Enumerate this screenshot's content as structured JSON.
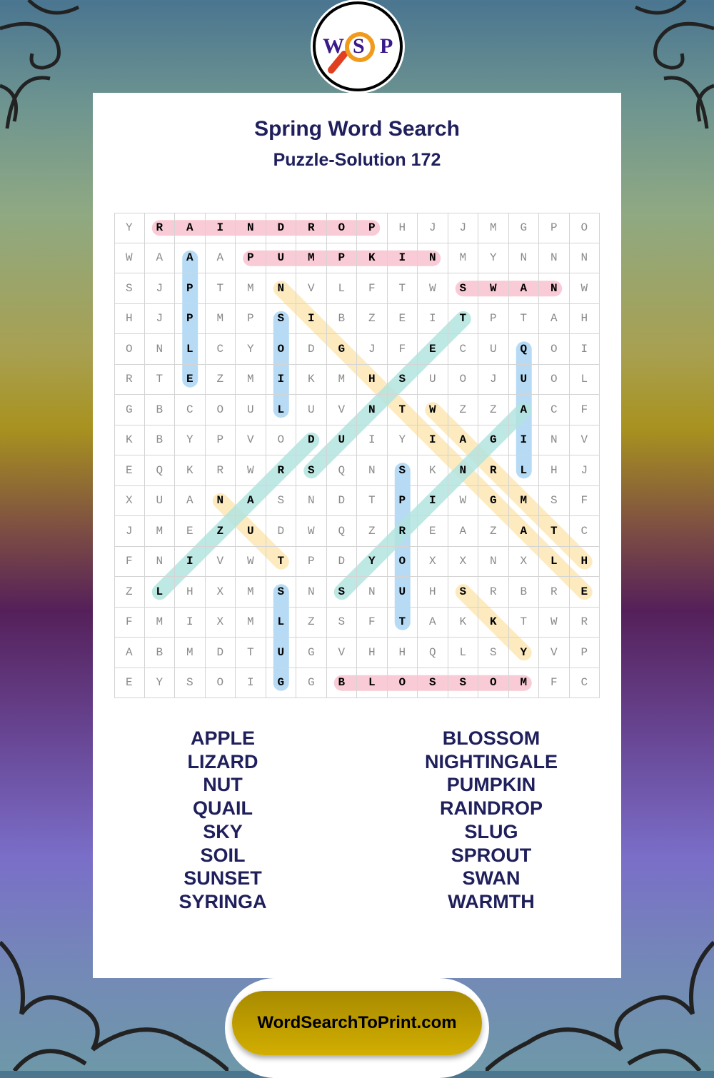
{
  "logo": {
    "letters": [
      "W",
      "S",
      "P"
    ],
    "icon": "magnifier-icon"
  },
  "header": {
    "title": "Spring Word Search",
    "subtitle": "Puzzle-Solution 172"
  },
  "grid": {
    "rows": [
      "YRAINDROPHJJMGPO",
      "WAAAPUMPKINMYNNN",
      "SJPTMNVLFTWSWANW",
      "HJPMPSIBZEITPTAH",
      "ONLCYODGJFECUQOI",
      "RTEZMIKMHSUOJUOL",
      "GBCOULUVNTWZZACF",
      "KBYPVODUIYIAGINV",
      "EQKRWRSQNSKNRLHJ",
      "XUANASNDTPIWGMSF",
      "JMEZUDWQZREAZATC",
      "FNIVWTPDYOXXNXLH",
      "ZLHXMSNSNUHSRBRE",
      "FMIXMLZSFTAKKTWR",
      "ABMDTUGVHHQLSYVP",
      "EYSOIGGBLOSSOMFC"
    ],
    "solutions": [
      {
        "word": "RAINDROP",
        "start": [
          0,
          1
        ],
        "end": [
          0,
          8
        ],
        "color": "#f9c3cf"
      },
      {
        "word": "PUMPKIN",
        "start": [
          1,
          4
        ],
        "end": [
          1,
          10
        ],
        "color": "#f9c3cf"
      },
      {
        "word": "SWAN",
        "start": [
          2,
          11
        ],
        "end": [
          2,
          14
        ],
        "color": "#f9c3cf"
      },
      {
        "word": "BLOSSOM",
        "start": [
          15,
          7
        ],
        "end": [
          15,
          13
        ],
        "color": "#f9c3cf"
      },
      {
        "word": "APPLE",
        "start": [
          1,
          2
        ],
        "end": [
          5,
          2
        ],
        "color": "#abd5f3"
      },
      {
        "word": "SOIL",
        "start": [
          3,
          5
        ],
        "end": [
          6,
          5
        ],
        "color": "#abd5f3"
      },
      {
        "word": "QUAIL",
        "start": [
          4,
          13
        ],
        "end": [
          8,
          13
        ],
        "color": "#abd5f3"
      },
      {
        "word": "SPROUT",
        "start": [
          8,
          9
        ],
        "end": [
          13,
          9
        ],
        "color": "#abd5f3"
      },
      {
        "word": "SLUG",
        "start": [
          12,
          5
        ],
        "end": [
          15,
          5
        ],
        "color": "#abd5f3"
      },
      {
        "word": "NIGHTINGALE",
        "start": [
          2,
          5
        ],
        "end": [
          12,
          15
        ],
        "color": "#fde8b5"
      },
      {
        "word": "WARMTH",
        "start": [
          6,
          10
        ],
        "end": [
          11,
          15
        ],
        "color": "#fde8b5"
      },
      {
        "word": "NUT",
        "start": [
          9,
          3
        ],
        "end": [
          11,
          5
        ],
        "color": "#fde8b5"
      },
      {
        "word": "SKY",
        "start": [
          12,
          11
        ],
        "end": [
          14,
          13
        ],
        "color": "#fde8b5"
      },
      {
        "word": "SUNSET",
        "start": [
          8,
          6
        ],
        "end": [
          3,
          11
        ],
        "color": "#b3e4e0"
      },
      {
        "word": "LIZARD",
        "start": [
          12,
          1
        ],
        "end": [
          7,
          6
        ],
        "color": "#b3e4e0"
      },
      {
        "word": "SYRINGA",
        "start": [
          12,
          7
        ],
        "end": [
          6,
          13
        ],
        "color": "#b3e4e0"
      }
    ]
  },
  "word_list": {
    "left": [
      "APPLE",
      "LIZARD",
      "NUT",
      "QUAIL",
      "SKY",
      "SOIL",
      "SUNSET",
      "SYRINGA"
    ],
    "right": [
      "BLOSSOM",
      "NIGHTINGALE",
      "PUMPKIN",
      "RAINDROP",
      "SLUG",
      "SPROUT",
      "SWAN",
      "WARMTH"
    ]
  },
  "footer": {
    "site": "WordSearchToPrint.com"
  }
}
